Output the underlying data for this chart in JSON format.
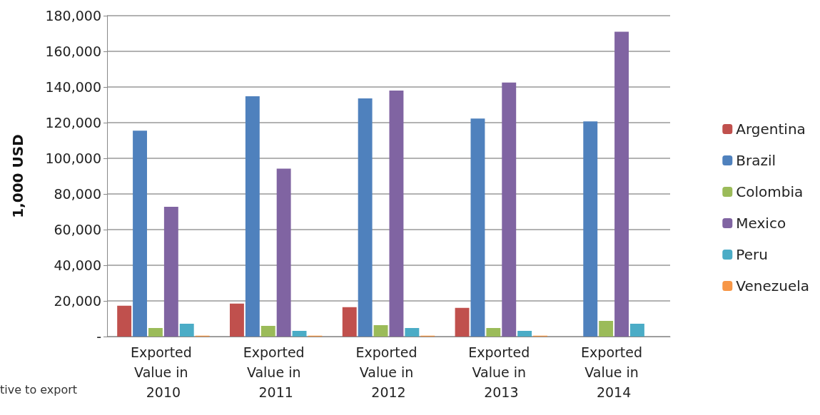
{
  "chart_data": {
    "type": "bar",
    "ylabel": "1,000 USD",
    "categories": [
      "Exported Value in 2010",
      "Exported Value in 2011",
      "Exported Value in 2012",
      "Exported Value in 2013",
      "Exported Value in 2014"
    ],
    "series": [
      {
        "name": "Argentina",
        "color": "#c0504d",
        "values": [
          17300,
          18500,
          16500,
          16100,
          null
        ]
      },
      {
        "name": "Brazil",
        "color": "#4f81bd",
        "values": [
          115500,
          134800,
          133600,
          122300,
          120700
        ]
      },
      {
        "name": "Colombia",
        "color": "#9bbb59",
        "values": [
          4800,
          6000,
          6400,
          4800,
          8800
        ]
      },
      {
        "name": "Mexico",
        "color": "#8064a2",
        "values": [
          72800,
          94200,
          138000,
          142500,
          171000
        ]
      },
      {
        "name": "Peru",
        "color": "#4bacc6",
        "values": [
          7200,
          3200,
          4800,
          3200,
          7200
        ]
      },
      {
        "name": "Venezuela",
        "color": "#f79646",
        "values": [
          500,
          500,
          500,
          500,
          null
        ]
      }
    ],
    "ylim": [
      0,
      180000
    ],
    "yticks": [
      {
        "value": 0,
        "label": "-"
      },
      {
        "value": 20000,
        "label": "20,000"
      },
      {
        "value": 40000,
        "label": "40,000"
      },
      {
        "value": 60000,
        "label": "60,000"
      },
      {
        "value": 80000,
        "label": "80,000"
      },
      {
        "value": 100000,
        "label": "100,000"
      },
      {
        "value": 120000,
        "label": "120,000"
      },
      {
        "value": 140000,
        "label": "140,000"
      },
      {
        "value": 160000,
        "label": "160,000"
      },
      {
        "value": 180000,
        "label": "180,000"
      }
    ],
    "grid": "y",
    "legend": "right",
    "annotations": [
      "tive to export"
    ]
  }
}
